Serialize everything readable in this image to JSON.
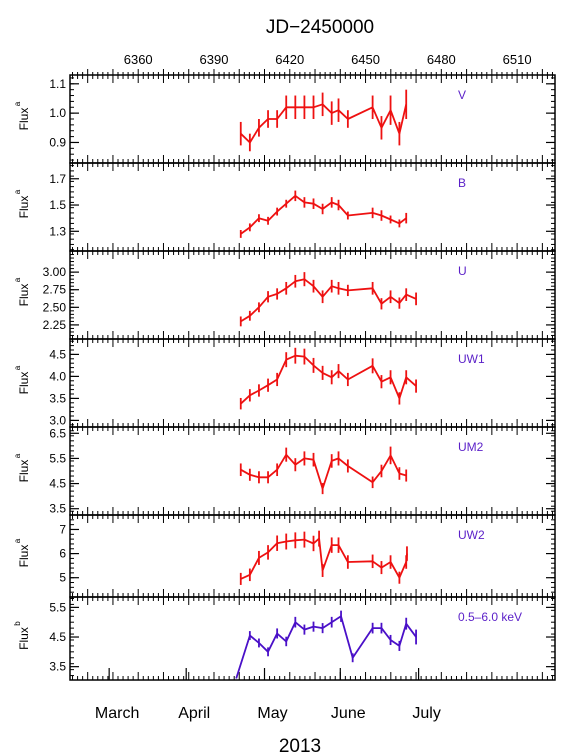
{
  "colors": {
    "optical": "#ee1111",
    "xray": "#4a10c8",
    "band_label": "#5a1fc8",
    "axis": "#000000"
  },
  "title_top": "JD−2450000",
  "title_bottom": "2013",
  "chart_data": {
    "type": "line",
    "x_unit": "JD-2450000",
    "x_range": [
      6333,
      6525
    ],
    "top_ticks": [
      6360,
      6390,
      6420,
      6450,
      6480,
      6510
    ],
    "top_tick_labels": [
      "6360",
      "6390",
      "6420",
      "6450",
      "6480",
      "6510"
    ],
    "months": [
      {
        "label": "March",
        "x": 6348.5
      },
      {
        "label": "April",
        "x": 6379
      },
      {
        "label": "May",
        "x": 6410
      },
      {
        "label": "June",
        "x": 6440
      },
      {
        "label": "July",
        "x": 6471
      }
    ],
    "panels": [
      {
        "band": "V",
        "ylabel": "Flux",
        "ysup": "a",
        "color": "optical",
        "ylim": [
          0.83,
          1.13
        ],
        "yticks": [
          0.9,
          1.0,
          1.1
        ],
        "ytick_labels": [
          "0.9",
          "1.0",
          "1.1"
        ],
        "points": [
          {
            "x": 6400.6,
            "y": 0.93,
            "err": 0.04
          },
          {
            "x": 6404.2,
            "y": 0.9,
            "err": 0.03
          },
          {
            "x": 6407.8,
            "y": 0.95,
            "err": 0.03
          },
          {
            "x": 6411.4,
            "y": 0.98,
            "err": 0.03
          },
          {
            "x": 6415.0,
            "y": 0.98,
            "err": 0.03
          },
          {
            "x": 6418.6,
            "y": 1.02,
            "err": 0.04
          },
          {
            "x": 6422.2,
            "y": 1.02,
            "err": 0.04
          },
          {
            "x": 6425.8,
            "y": 1.02,
            "err": 0.04
          },
          {
            "x": 6429.4,
            "y": 1.02,
            "err": 0.04
          },
          {
            "x": 6433.0,
            "y": 1.03,
            "err": 0.04
          },
          {
            "x": 6436.6,
            "y": 1.0,
            "err": 0.04
          },
          {
            "x": 6439.3,
            "y": 1.01,
            "err": 0.04
          },
          {
            "x": 6443.0,
            "y": 0.98,
            "err": 0.03
          },
          {
            "x": 6452.8,
            "y": 1.02,
            "err": 0.04
          },
          {
            "x": 6456.3,
            "y": 0.95,
            "err": 0.04
          },
          {
            "x": 6459.9,
            "y": 1.01,
            "err": 0.05
          },
          {
            "x": 6463.4,
            "y": 0.93,
            "err": 0.04
          },
          {
            "x": 6466.1,
            "y": 1.03,
            "err": 0.05
          }
        ]
      },
      {
        "band": "B",
        "ylabel": "Flux",
        "ysup": "a",
        "color": "optical",
        "ylim": [
          1.15,
          1.82
        ],
        "yticks": [
          1.3,
          1.5,
          1.7
        ],
        "ytick_labels": [
          "1.3",
          "1.5",
          "1.7"
        ],
        "points": [
          {
            "x": 6400.6,
            "y": 1.28,
            "err": 0.03
          },
          {
            "x": 6404.2,
            "y": 1.33,
            "err": 0.03
          },
          {
            "x": 6407.8,
            "y": 1.4,
            "err": 0.03
          },
          {
            "x": 6411.4,
            "y": 1.38,
            "err": 0.03
          },
          {
            "x": 6415.0,
            "y": 1.45,
            "err": 0.03
          },
          {
            "x": 6418.6,
            "y": 1.51,
            "err": 0.03
          },
          {
            "x": 6422.2,
            "y": 1.57,
            "err": 0.04
          },
          {
            "x": 6425.8,
            "y": 1.52,
            "err": 0.04
          },
          {
            "x": 6429.4,
            "y": 1.51,
            "err": 0.04
          },
          {
            "x": 6433.0,
            "y": 1.47,
            "err": 0.04
          },
          {
            "x": 6436.6,
            "y": 1.52,
            "err": 0.04
          },
          {
            "x": 6439.3,
            "y": 1.5,
            "err": 0.04
          },
          {
            "x": 6443.0,
            "y": 1.42,
            "err": 0.03
          },
          {
            "x": 6452.8,
            "y": 1.44,
            "err": 0.04
          },
          {
            "x": 6456.3,
            "y": 1.42,
            "err": 0.04
          },
          {
            "x": 6459.9,
            "y": 1.39,
            "err": 0.03
          },
          {
            "x": 6463.4,
            "y": 1.36,
            "err": 0.03
          },
          {
            "x": 6466.1,
            "y": 1.4,
            "err": 0.04
          }
        ]
      },
      {
        "band": "U",
        "ylabel": "Flux",
        "ysup": "a",
        "color": "optical",
        "ylim": [
          2.05,
          3.3
        ],
        "yticks": [
          2.25,
          2.5,
          2.75,
          3.0
        ],
        "ytick_labels": [
          "2.25",
          "2.50",
          "2.75",
          "3.00"
        ],
        "points": [
          {
            "x": 6400.6,
            "y": 2.3,
            "err": 0.07
          },
          {
            "x": 6404.2,
            "y": 2.38,
            "err": 0.07
          },
          {
            "x": 6407.8,
            "y": 2.5,
            "err": 0.07
          },
          {
            "x": 6411.4,
            "y": 2.65,
            "err": 0.08
          },
          {
            "x": 6415.0,
            "y": 2.69,
            "err": 0.08
          },
          {
            "x": 6418.6,
            "y": 2.77,
            "err": 0.09
          },
          {
            "x": 6422.2,
            "y": 2.87,
            "err": 0.09
          },
          {
            "x": 6425.8,
            "y": 2.9,
            "err": 0.1
          },
          {
            "x": 6429.4,
            "y": 2.8,
            "err": 0.09
          },
          {
            "x": 6433.0,
            "y": 2.65,
            "err": 0.09
          },
          {
            "x": 6436.6,
            "y": 2.8,
            "err": 0.09
          },
          {
            "x": 6439.3,
            "y": 2.77,
            "err": 0.09
          },
          {
            "x": 6443.0,
            "y": 2.74,
            "err": 0.08
          },
          {
            "x": 6452.8,
            "y": 2.77,
            "err": 0.09
          },
          {
            "x": 6456.3,
            "y": 2.55,
            "err": 0.08
          },
          {
            "x": 6459.9,
            "y": 2.65,
            "err": 0.09
          },
          {
            "x": 6463.4,
            "y": 2.56,
            "err": 0.08
          },
          {
            "x": 6466.1,
            "y": 2.68,
            "err": 0.09
          },
          {
            "x": 6470.0,
            "y": 2.62,
            "err": 0.09
          }
        ]
      },
      {
        "band": "UW1",
        "ylabel": "Flux",
        "ysup": "a",
        "color": "optical",
        "ylim": [
          2.85,
          4.85
        ],
        "yticks": [
          3.0,
          3.5,
          4.0,
          4.5
        ],
        "ytick_labels": [
          "3.0",
          "3.5",
          "4.0",
          "4.5"
        ],
        "points": [
          {
            "x": 6400.6,
            "y": 3.38,
            "err": 0.13
          },
          {
            "x": 6404.2,
            "y": 3.57,
            "err": 0.14
          },
          {
            "x": 6407.8,
            "y": 3.68,
            "err": 0.14
          },
          {
            "x": 6411.4,
            "y": 3.8,
            "err": 0.15
          },
          {
            "x": 6415.0,
            "y": 3.93,
            "err": 0.15
          },
          {
            "x": 6418.6,
            "y": 4.38,
            "err": 0.17
          },
          {
            "x": 6422.2,
            "y": 4.47,
            "err": 0.18
          },
          {
            "x": 6425.8,
            "y": 4.45,
            "err": 0.18
          },
          {
            "x": 6429.4,
            "y": 4.25,
            "err": 0.17
          },
          {
            "x": 6433.0,
            "y": 4.08,
            "err": 0.16
          },
          {
            "x": 6436.6,
            "y": 3.98,
            "err": 0.16
          },
          {
            "x": 6439.3,
            "y": 4.12,
            "err": 0.16
          },
          {
            "x": 6443.0,
            "y": 3.93,
            "err": 0.15
          },
          {
            "x": 6452.8,
            "y": 4.24,
            "err": 0.17
          },
          {
            "x": 6456.3,
            "y": 3.88,
            "err": 0.15
          },
          {
            "x": 6459.9,
            "y": 3.98,
            "err": 0.16
          },
          {
            "x": 6463.4,
            "y": 3.5,
            "err": 0.14
          },
          {
            "x": 6466.1,
            "y": 3.98,
            "err": 0.16
          },
          {
            "x": 6470.0,
            "y": 3.78,
            "err": 0.15
          }
        ]
      },
      {
        "band": "UM2",
        "ylabel": "Flux",
        "ysup": "a",
        "color": "optical",
        "ylim": [
          3.25,
          6.75
        ],
        "yticks": [
          3.5,
          4.5,
          5.5,
          6.5
        ],
        "ytick_labels": [
          "3.5",
          "4.5",
          "5.5",
          "6.5"
        ],
        "points": [
          {
            "x": 6400.6,
            "y": 5.05,
            "err": 0.25
          },
          {
            "x": 6404.2,
            "y": 4.85,
            "err": 0.24
          },
          {
            "x": 6407.8,
            "y": 4.75,
            "err": 0.24
          },
          {
            "x": 6411.4,
            "y": 4.75,
            "err": 0.24
          },
          {
            "x": 6415.0,
            "y": 5.05,
            "err": 0.25
          },
          {
            "x": 6418.6,
            "y": 5.65,
            "err": 0.28
          },
          {
            "x": 6422.2,
            "y": 5.25,
            "err": 0.26
          },
          {
            "x": 6425.8,
            "y": 5.5,
            "err": 0.28
          },
          {
            "x": 6429.4,
            "y": 5.45,
            "err": 0.27
          },
          {
            "x": 6433.0,
            "y": 4.3,
            "err": 0.22
          },
          {
            "x": 6436.6,
            "y": 5.4,
            "err": 0.27
          },
          {
            "x": 6439.3,
            "y": 5.5,
            "err": 0.28
          },
          {
            "x": 6443.0,
            "y": 5.2,
            "err": 0.26
          },
          {
            "x": 6452.8,
            "y": 4.55,
            "err": 0.23
          },
          {
            "x": 6456.3,
            "y": 5.0,
            "err": 0.25
          },
          {
            "x": 6459.9,
            "y": 5.62,
            "err": 0.35
          },
          {
            "x": 6463.4,
            "y": 4.9,
            "err": 0.25
          },
          {
            "x": 6466.1,
            "y": 4.82,
            "err": 0.24
          }
        ]
      },
      {
        "band": "UW2",
        "ylabel": "Flux",
        "ysup": "a",
        "color": "optical",
        "ylim": [
          4.2,
          7.6
        ],
        "yticks": [
          5,
          6,
          7
        ],
        "ytick_labels": [
          "5",
          "6",
          "7"
        ],
        "points": [
          {
            "x": 6400.6,
            "y": 4.95,
            "err": 0.25
          },
          {
            "x": 6404.2,
            "y": 5.12,
            "err": 0.26
          },
          {
            "x": 6407.8,
            "y": 5.82,
            "err": 0.29
          },
          {
            "x": 6411.4,
            "y": 6.05,
            "err": 0.3
          },
          {
            "x": 6415.0,
            "y": 6.43,
            "err": 0.32
          },
          {
            "x": 6418.6,
            "y": 6.5,
            "err": 0.33
          },
          {
            "x": 6422.2,
            "y": 6.55,
            "err": 0.33
          },
          {
            "x": 6425.8,
            "y": 6.58,
            "err": 0.33
          },
          {
            "x": 6429.4,
            "y": 6.42,
            "err": 0.32
          },
          {
            "x": 6431.6,
            "y": 6.62,
            "err": 0.33
          },
          {
            "x": 6433.0,
            "y": 5.3,
            "err": 0.27
          },
          {
            "x": 6436.6,
            "y": 6.35,
            "err": 0.32
          },
          {
            "x": 6439.3,
            "y": 6.35,
            "err": 0.32
          },
          {
            "x": 6443.0,
            "y": 5.65,
            "err": 0.28
          },
          {
            "x": 6452.8,
            "y": 5.68,
            "err": 0.28
          },
          {
            "x": 6456.3,
            "y": 5.42,
            "err": 0.27
          },
          {
            "x": 6459.9,
            "y": 5.65,
            "err": 0.28
          },
          {
            "x": 6463.4,
            "y": 5.0,
            "err": 0.25
          },
          {
            "x": 6466.1,
            "y": 5.65,
            "err": 0.28
          },
          {
            "x": 6466.4,
            "y": 6.0,
            "err": 0.3
          }
        ]
      },
      {
        "band": "0.5–6.0 keV",
        "ylabel": "Flux",
        "ysup": "b",
        "color": "xray",
        "ylim": [
          3.05,
          5.85
        ],
        "yticks": [
          3.5,
          4.5,
          5.5
        ],
        "ytick_labels": [
          "3.5",
          "4.5",
          "5.5"
        ],
        "points": [
          {
            "x": 6398.8,
            "y": 3.1,
            "err": 0.0
          },
          {
            "x": 6404.2,
            "y": 4.55,
            "err": 0.15
          },
          {
            "x": 6407.8,
            "y": 4.3,
            "err": 0.15
          },
          {
            "x": 6411.4,
            "y": 4.0,
            "err": 0.15
          },
          {
            "x": 6415.0,
            "y": 4.62,
            "err": 0.17
          },
          {
            "x": 6418.6,
            "y": 4.35,
            "err": 0.16
          },
          {
            "x": 6422.2,
            "y": 5.0,
            "err": 0.18
          },
          {
            "x": 6425.8,
            "y": 4.75,
            "err": 0.17
          },
          {
            "x": 6429.4,
            "y": 4.85,
            "err": 0.17
          },
          {
            "x": 6433.0,
            "y": 4.8,
            "err": 0.17
          },
          {
            "x": 6436.6,
            "y": 5.0,
            "err": 0.18
          },
          {
            "x": 6440.3,
            "y": 5.2,
            "err": 0.19
          },
          {
            "x": 6444.9,
            "y": 3.8,
            "err": 0.15
          },
          {
            "x": 6452.8,
            "y": 4.8,
            "err": 0.18
          },
          {
            "x": 6456.3,
            "y": 4.8,
            "err": 0.18
          },
          {
            "x": 6459.9,
            "y": 4.4,
            "err": 0.17
          },
          {
            "x": 6463.4,
            "y": 4.2,
            "err": 0.17
          },
          {
            "x": 6466.1,
            "y": 4.95,
            "err": 0.2
          },
          {
            "x": 6470.0,
            "y": 4.5,
            "err": 0.25
          }
        ]
      }
    ]
  }
}
